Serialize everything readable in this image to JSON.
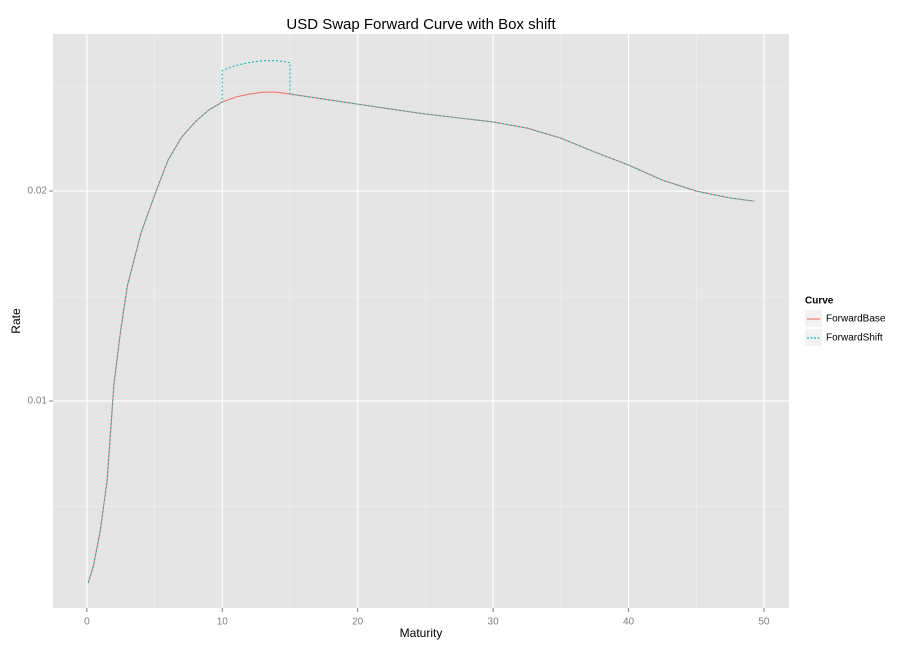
{
  "chart_data": {
    "type": "line",
    "title": "USD Swap Forward Curve with Box shift",
    "x_label": "Maturity",
    "y_label": "Rate",
    "xlim": [
      -2.5,
      51.85
    ],
    "ylim": [
      0.000143,
      0.02748
    ],
    "xticks": [
      0,
      10,
      20,
      30,
      40,
      50
    ],
    "yticks": [
      0.01,
      0.02
    ],
    "x_minor_ticks": [
      5,
      15,
      25,
      35,
      45
    ],
    "y_minor_ticks": [
      0.005,
      0.015,
      0.025
    ],
    "grid": true,
    "legend_title": "Curve",
    "legend_position": "right",
    "series": [
      {
        "name": "ForwardBase",
        "color": "#f8766d",
        "dash": false,
        "x": [
          0.1,
          0.5,
          1,
          1.5,
          2,
          2.5,
          3,
          4,
          5,
          6,
          7,
          8,
          9,
          10,
          11,
          12,
          13,
          14,
          15,
          17.5,
          20,
          22.5,
          25,
          27.5,
          30,
          32.5,
          35,
          37.5,
          40,
          42.5,
          45,
          47.5,
          49.3
        ],
        "values": [
          0.00133,
          0.00219,
          0.00386,
          0.00624,
          0.0108,
          0.01338,
          0.01552,
          0.018,
          0.0198,
          0.02148,
          0.02257,
          0.02329,
          0.02386,
          0.02424,
          0.02448,
          0.02462,
          0.02471,
          0.02471,
          0.02462,
          0.02438,
          0.02414,
          0.0239,
          0.02367,
          0.02348,
          0.02329,
          0.023,
          0.02252,
          0.02186,
          0.02124,
          0.02052,
          0.02,
          0.01967,
          0.01952
        ]
      },
      {
        "name": "ForwardShift",
        "color": "#00bfc4",
        "dash": true,
        "x": [
          0.1,
          0.5,
          1,
          1.5,
          2,
          2.5,
          3,
          4,
          5,
          6,
          7,
          8,
          9,
          10,
          10,
          11,
          12,
          13,
          14,
          15,
          15,
          17.5,
          20,
          22.5,
          25,
          27.5,
          30,
          32.5,
          35,
          37.5,
          40,
          42.5,
          45,
          47.5,
          49.3
        ],
        "values": [
          0.00133,
          0.00219,
          0.00386,
          0.00624,
          0.0108,
          0.01338,
          0.01552,
          0.018,
          0.0198,
          0.02148,
          0.02257,
          0.02329,
          0.02386,
          0.02424,
          0.02574,
          0.02598,
          0.02612,
          0.02621,
          0.02621,
          0.02612,
          0.02462,
          0.02438,
          0.02414,
          0.0239,
          0.02367,
          0.02348,
          0.02329,
          0.023,
          0.02252,
          0.02186,
          0.02124,
          0.02052,
          0.02,
          0.01967,
          0.01952
        ]
      }
    ]
  }
}
